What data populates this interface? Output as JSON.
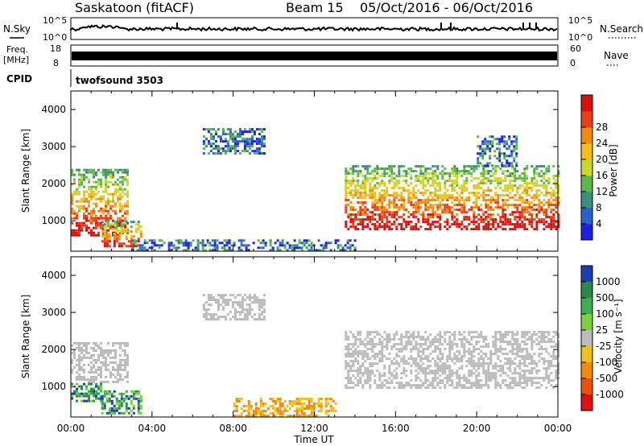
{
  "header": {
    "station": "Saskatoon (fitACF)",
    "beam": "Beam 15",
    "daterange": "05/Oct/2016 - 06/Oct/2016"
  },
  "labels": {
    "nsky": "N.Sky",
    "nsearch": "N.Search",
    "freq_line1": "Freq.",
    "freq_line2": "[MHz]",
    "nave": "Nave",
    "cpid": "CPID",
    "cpid_value": "twofsound 3503",
    "xlabel": "Time UT",
    "ylabel_top": "Slant Range [km]",
    "ylabel_bottom": "Slant Range [km]",
    "power_label": "Power [dB]",
    "velocity_label": "Velocity [m s⁻¹]",
    "sky_tick_hi": "10^5",
    "sky_tick_lo": "10^0",
    "search_tick_hi": "10^5",
    "search_tick_lo": "10^0",
    "freq_tick_hi": "18",
    "freq_tick_lo": "8",
    "nave_tick_hi": "60",
    "nave_tick_lo": "0"
  },
  "chart_data": [
    {
      "type": "heatmap",
      "title": "Power",
      "x_ticks": [
        "00:00",
        "04:00",
        "08:00",
        "12:00",
        "16:00",
        "20:00",
        "00:00"
      ],
      "xlim_hours": [
        0,
        24
      ],
      "ylabel": "Slant Range [km]",
      "y_ticks": [
        1000,
        2000,
        3000,
        4000
      ],
      "ylim": [
        180,
        4500
      ],
      "colorbar": {
        "label": "Power [dB]",
        "ticks": [
          4,
          8,
          12,
          16,
          20,
          24,
          28
        ],
        "colors": [
          "#1f1fe0",
          "#2b5fd0",
          "#3a8f7a",
          "#5cb84a",
          "#c8d92e",
          "#f0c020",
          "#f08a10",
          "#e8401a",
          "#d81010"
        ]
      },
      "echo_regions": [
        {
          "t0": 0.0,
          "t1": 2.8,
          "r0": 600,
          "r1": 2400,
          "level": "high"
        },
        {
          "t0": 1.5,
          "t1": 3.5,
          "r0": 300,
          "r1": 1000,
          "level": "high"
        },
        {
          "t0": 6.5,
          "t1": 9.5,
          "r0": 2800,
          "r1": 3500,
          "level": "low"
        },
        {
          "t0": 13.5,
          "t1": 24.0,
          "r0": 800,
          "r1": 2500,
          "level": "high"
        },
        {
          "t0": 20.0,
          "t1": 22.0,
          "r0": 2500,
          "r1": 3300,
          "level": "low"
        },
        {
          "t0": 3.0,
          "t1": 14.0,
          "r0": 180,
          "r1": 500,
          "level": "low"
        }
      ]
    },
    {
      "type": "heatmap",
      "title": "Velocity",
      "x_ticks": [
        "00:00",
        "04:00",
        "08:00",
        "12:00",
        "16:00",
        "20:00",
        "00:00"
      ],
      "xlim_hours": [
        0,
        24
      ],
      "ylabel": "Slant Range [km]",
      "y_ticks": [
        1000,
        2000,
        3000,
        4000
      ],
      "ylim": [
        180,
        4500
      ],
      "colorbar": {
        "label": "Velocity [m s⁻¹]",
        "ticks": [
          1000,
          500,
          100,
          25,
          -25,
          -100,
          -500,
          -1000
        ],
        "colors": [
          "#1b3fb0",
          "#2b8a4a",
          "#3cb050",
          "#7ad040",
          "#bbbbbb",
          "#f0c020",
          "#f08a10",
          "#e85010",
          "#e01010"
        ]
      },
      "echo_regions": [
        {
          "t0": 0.0,
          "t1": 2.8,
          "r0": 1100,
          "r1": 2200,
          "level": "ground"
        },
        {
          "t0": 0.0,
          "t1": 1.5,
          "r0": 600,
          "r1": 1100,
          "level": "positive"
        },
        {
          "t0": 1.5,
          "t1": 3.5,
          "r0": 300,
          "r1": 900,
          "level": "positive"
        },
        {
          "t0": 6.5,
          "t1": 9.5,
          "r0": 2800,
          "r1": 3500,
          "level": "ground"
        },
        {
          "t0": 13.5,
          "t1": 24.0,
          "r0": 1000,
          "r1": 2500,
          "level": "ground"
        },
        {
          "t0": 8.0,
          "t1": 13.0,
          "r0": 200,
          "r1": 700,
          "level": "negative"
        }
      ]
    }
  ],
  "colors": {
    "text": "#000000",
    "axis": "#000000",
    "background": "#ffffff"
  }
}
